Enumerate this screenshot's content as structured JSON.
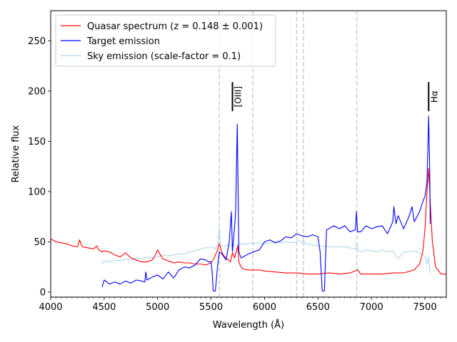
{
  "chart_data": {
    "type": "line",
    "xlabel": "Wavelength (Å)",
    "ylabel": "Relative flux",
    "xlim": [
      4000,
      7700
    ],
    "ylim": [
      -5,
      280
    ],
    "x_ticks": [
      4000,
      4500,
      5000,
      5500,
      6000,
      6500,
      7000,
      7500
    ],
    "x_tick_labels": [
      "4000",
      "4500",
      "5000",
      "5500",
      "6000",
      "6500",
      "7000",
      "7500"
    ],
    "y_ticks": [
      0,
      50,
      100,
      150,
      200,
      250
    ],
    "y_tick_labels": [
      "0",
      "50",
      "100",
      "150",
      "200",
      "250"
    ],
    "legend": {
      "placement": "top-left",
      "entries": [
        {
          "label": "Quasar spectrum (z = 0.148 ± 0.001)",
          "color": "#ff0000"
        },
        {
          "label": "Target emission",
          "color": "#0000ff"
        },
        {
          "label": "Sky emission (scale-factor = 0.1)",
          "color": "#add8e6"
        }
      ]
    },
    "vertical_dashed_lines": [
      5577,
      5890,
      6300,
      6364,
      6863
    ],
    "annotations": [
      {
        "text": "[OIII]",
        "x": 5700,
        "y_range": [
          180,
          209
        ]
      },
      {
        "text": "Hα",
        "x": 7535,
        "y_range": [
          180,
          209
        ]
      }
    ],
    "series": [
      {
        "name": "Quasar spectrum (z = 0.148 ± 0.001)",
        "color": "#ff0000",
        "x": [
          4000,
          4050,
          4100,
          4150,
          4200,
          4250,
          4270,
          4285,
          4300,
          4350,
          4400,
          4430,
          4450,
          4480,
          4500,
          4550,
          4600,
          4650,
          4700,
          4750,
          4800,
          4850,
          4900,
          4950,
          4980,
          5000,
          5020,
          5050,
          5100,
          5150,
          5200,
          5250,
          5300,
          5350,
          5400,
          5450,
          5500,
          5530,
          5560,
          5577,
          5600,
          5620,
          5650,
          5680,
          5700,
          5720,
          5740,
          5750,
          5760,
          5780,
          5800,
          5850,
          5900,
          5950,
          6000,
          6100,
          6200,
          6300,
          6400,
          6500,
          6600,
          6700,
          6800,
          6870,
          6900,
          7000,
          7100,
          7200,
          7300,
          7400,
          7450,
          7480,
          7500,
          7520,
          7535,
          7550,
          7570,
          7600,
          7650,
          7700
        ],
        "y": [
          53,
          50,
          49,
          48,
          46,
          45,
          52,
          47,
          45,
          44,
          43,
          46,
          42,
          40,
          41,
          40,
          37,
          35,
          39,
          34,
          32,
          30,
          30,
          32,
          37,
          42,
          38,
          33,
          31,
          29,
          30,
          29,
          29,
          28,
          28,
          27,
          29,
          34,
          42,
          48,
          40,
          36,
          33,
          30,
          39,
          34,
          42,
          46,
          30,
          25,
          23,
          22,
          22,
          22,
          21,
          20,
          19,
          19,
          18,
          18,
          19,
          18,
          19,
          22,
          18,
          18,
          18,
          19,
          19,
          22,
          28,
          40,
          62,
          100,
          123,
          90,
          50,
          25,
          18,
          18
        ]
      },
      {
        "name": "Target emission",
        "color": "#0000ff",
        "x": [
          4480,
          4500,
          4550,
          4600,
          4650,
          4700,
          4750,
          4800,
          4850,
          4880,
          4890,
          4900,
          4950,
          5000,
          5050,
          5100,
          5150,
          5200,
          5250,
          5300,
          5350,
          5400,
          5450,
          5480,
          5500,
          5510,
          5520,
          5540,
          5560,
          5577,
          5600,
          5640,
          5670,
          5690,
          5700,
          5720,
          5730,
          5745,
          5760,
          5780,
          5800,
          5850,
          5900,
          5950,
          6000,
          6050,
          6100,
          6150,
          6200,
          6250,
          6300,
          6350,
          6400,
          6450,
          6500,
          6520,
          6540,
          6560,
          6580,
          6600,
          6650,
          6700,
          6750,
          6800,
          6850,
          6860,
          6870,
          6900,
          6950,
          7000,
          7050,
          7100,
          7150,
          7200,
          7210,
          7230,
          7250,
          7300,
          7350,
          7380,
          7400,
          7450,
          7480,
          7500,
          7520,
          7535,
          7545,
          7550
        ],
        "y": [
          5,
          12,
          8,
          10,
          8,
          11,
          9,
          12,
          11,
          10,
          20,
          12,
          15,
          17,
          13,
          20,
          14,
          22,
          25,
          24,
          27,
          33,
          32,
          30,
          30,
          20,
          1,
          1,
          25,
          40,
          38,
          32,
          50,
          80,
          40,
          65,
          80,
          167,
          40,
          34,
          35,
          38,
          40,
          42,
          50,
          52,
          49,
          51,
          55,
          54,
          58,
          56,
          55,
          57,
          55,
          40,
          1,
          1,
          62,
          63,
          66,
          63,
          66,
          60,
          62,
          80,
          60,
          60,
          66,
          63,
          65,
          66,
          58,
          70,
          85,
          68,
          76,
          63,
          75,
          85,
          70,
          80,
          90,
          95,
          110,
          175,
          120,
          68
        ]
      },
      {
        "name": "Sky emission (scale-factor = 0.1)",
        "color": "#add8e6",
        "x": [
          4480,
          4500,
          4550,
          4600,
          4650,
          4700,
          4750,
          4800,
          4850,
          4900,
          4950,
          5000,
          5050,
          5100,
          5150,
          5200,
          5250,
          5300,
          5350,
          5400,
          5450,
          5500,
          5540,
          5560,
          5577,
          5590,
          5620,
          5650,
          5700,
          5750,
          5800,
          5850,
          5890,
          5900,
          5950,
          6000,
          6050,
          6100,
          6150,
          6200,
          6250,
          6300,
          6320,
          6350,
          6364,
          6380,
          6400,
          6450,
          6500,
          6550,
          6600,
          6650,
          6700,
          6750,
          6800,
          6850,
          6863,
          6880,
          6900,
          6950,
          7000,
          7050,
          7100,
          7150,
          7200,
          7250,
          7300,
          7350,
          7400,
          7450,
          7500,
          7520,
          7535,
          7550
        ],
        "y": [
          28,
          31,
          30,
          32,
          31,
          33,
          32,
          34,
          33,
          35,
          34,
          35,
          37,
          36,
          37,
          38,
          38,
          40,
          41,
          43,
          44,
          45,
          43,
          48,
          64,
          46,
          45,
          47,
          46,
          47,
          48,
          48,
          50,
          48,
          49,
          48,
          49,
          50,
          49,
          50,
          49,
          50,
          52,
          49,
          52,
          48,
          48,
          47,
          46,
          46,
          45,
          45,
          45,
          45,
          44,
          43,
          48,
          41,
          40,
          42,
          41,
          40,
          42,
          40,
          41,
          33,
          40,
          40,
          41,
          39,
          36,
          28,
          35,
          18
        ]
      }
    ]
  }
}
